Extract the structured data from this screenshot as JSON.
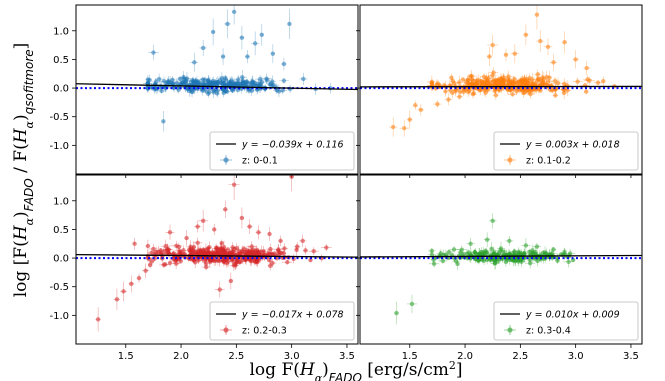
{
  "figure": {
    "ylabel": "log [F(Hα)FADO / F(Hα)qsofitmore]",
    "xlabel": "log F(Hα)FADO [erg/s/cm2]"
  },
  "chart_data": [
    {
      "type": "scatter",
      "panel": "top-left",
      "xlim": [
        1.05,
        3.6
      ],
      "ylim": [
        -1.5,
        1.45
      ],
      "xticks": [
        1.5,
        2.0,
        2.5,
        3.0,
        3.5
      ],
      "yticks": [
        -1.0,
        -0.5,
        0.0,
        0.5,
        1.0
      ],
      "legend_placement": "lower-right",
      "fit": {
        "slope": -0.039,
        "intercept": 0.116,
        "label": "y = −0.039x + 0.116"
      },
      "series": [
        {
          "name": "z: 0-0.1",
          "color": "#1f77b4"
        }
      ],
      "cloud": {
        "x_center": 2.3,
        "x_spread": 0.33,
        "y_center": 0.04,
        "y_spread": 0.06,
        "count": 260
      },
      "outliers": [
        [
          1.75,
          0.62
        ],
        [
          1.84,
          -0.58
        ],
        [
          2.2,
          0.7
        ],
        [
          2.29,
          0.98
        ],
        [
          2.42,
          1.12
        ],
        [
          2.48,
          1.33
        ],
        [
          2.55,
          0.88
        ],
        [
          2.6,
          0.55
        ],
        [
          2.67,
          0.78
        ],
        [
          2.73,
          0.93
        ],
        [
          2.83,
          0.6
        ],
        [
          2.98,
          1.12
        ],
        [
          2.38,
          0.55
        ],
        [
          2.12,
          0.45
        ],
        [
          2.93,
          0.42
        ]
      ]
    },
    {
      "type": "scatter",
      "panel": "top-right",
      "xlim": [
        1.05,
        3.6
      ],
      "ylim": [
        -1.5,
        1.45
      ],
      "xticks": [
        1.5,
        2.0,
        2.5,
        3.0,
        3.5
      ],
      "yticks": [
        -1.0,
        -0.5,
        0.0,
        0.5,
        1.0
      ],
      "legend_placement": "lower-right",
      "fit": {
        "slope": 0.003,
        "intercept": 0.018,
        "label": "y = 0.003x + 0.018"
      },
      "series": [
        {
          "name": "z: 0.1-0.2",
          "color": "#ff7f0e"
        }
      ],
      "cloud": {
        "x_center": 2.35,
        "x_spread": 0.3,
        "y_center": 0.05,
        "y_spread": 0.07,
        "count": 300
      },
      "outliers": [
        [
          1.35,
          -0.68
        ],
        [
          1.45,
          -0.7
        ],
        [
          1.5,
          -0.55
        ],
        [
          1.6,
          -0.38
        ],
        [
          1.75,
          -0.28
        ],
        [
          1.85,
          -0.2
        ],
        [
          1.95,
          -0.15
        ],
        [
          1.55,
          -0.3
        ],
        [
          2.25,
          0.75
        ],
        [
          2.37,
          0.58
        ],
        [
          2.55,
          0.93
        ],
        [
          2.65,
          1.28
        ],
        [
          2.68,
          0.82
        ],
        [
          2.75,
          0.72
        ],
        [
          2.8,
          0.45
        ],
        [
          2.9,
          0.8
        ],
        [
          3.0,
          0.5
        ],
        [
          3.1,
          0.35
        ],
        [
          3.25,
          0.12
        ],
        [
          3.35,
          0.03
        ],
        [
          2.45,
          0.6
        ],
        [
          2.22,
          0.55
        ]
      ]
    },
    {
      "type": "scatter",
      "panel": "bottom-left",
      "xlim": [
        1.05,
        3.6
      ],
      "ylim": [
        -1.5,
        1.45
      ],
      "xticks": [
        1.5,
        2.0,
        2.5,
        3.0,
        3.5
      ],
      "yticks": [
        -1.0,
        -0.5,
        0.0,
        0.5,
        1.0
      ],
      "legend_placement": "lower-right",
      "fit": {
        "slope": -0.017,
        "intercept": 0.078,
        "label": "y = −0.017x + 0.078"
      },
      "series": [
        {
          "name": "z: 0.2-0.3",
          "color": "#d62728"
        }
      ],
      "cloud": {
        "x_center": 2.35,
        "x_spread": 0.33,
        "y_center": 0.05,
        "y_spread": 0.07,
        "count": 340
      },
      "outliers": [
        [
          1.25,
          -1.07
        ],
        [
          1.42,
          -0.72
        ],
        [
          1.48,
          -0.58
        ],
        [
          1.55,
          -0.45
        ],
        [
          1.62,
          -0.35
        ],
        [
          1.68,
          -0.22
        ],
        [
          1.72,
          -0.12
        ],
        [
          1.58,
          0.25
        ],
        [
          1.9,
          0.45
        ],
        [
          2.05,
          0.35
        ],
        [
          2.15,
          0.55
        ],
        [
          2.2,
          0.65
        ],
        [
          2.3,
          0.5
        ],
        [
          2.4,
          0.85
        ],
        [
          2.48,
          1.28
        ],
        [
          2.55,
          0.7
        ],
        [
          2.62,
          0.55
        ],
        [
          2.7,
          0.45
        ],
        [
          2.8,
          0.42
        ],
        [
          3.0,
          1.42
        ],
        [
          3.1,
          0.3
        ],
        [
          3.2,
          0.12
        ],
        [
          2.9,
          0.3
        ],
        [
          2.35,
          -0.55
        ],
        [
          2.45,
          -0.4
        ]
      ]
    },
    {
      "type": "scatter",
      "panel": "bottom-right",
      "xlim": [
        1.05,
        3.6
      ],
      "ylim": [
        -1.5,
        1.45
      ],
      "xticks": [
        1.5,
        2.0,
        2.5,
        3.0,
        3.5
      ],
      "yticks": [
        -1.0,
        -0.5,
        0.0,
        0.5,
        1.0
      ],
      "legend_placement": "lower-right",
      "fit": {
        "slope": 0.01,
        "intercept": 0.009,
        "label": "y = 0.010x + 0.009"
      },
      "series": [
        {
          "name": "z: 0.3-0.4",
          "color": "#2ca02c"
        }
      ],
      "cloud": {
        "x_center": 2.35,
        "x_spread": 0.26,
        "y_center": 0.03,
        "y_spread": 0.05,
        "count": 220
      },
      "outliers": [
        [
          1.38,
          -0.96
        ],
        [
          1.52,
          -0.8
        ],
        [
          1.72,
          -0.1
        ],
        [
          1.8,
          -0.05
        ],
        [
          1.9,
          0.15
        ],
        [
          2.05,
          0.25
        ],
        [
          2.2,
          0.32
        ],
        [
          2.25,
          0.65
        ],
        [
          2.4,
          0.3
        ],
        [
          2.55,
          0.22
        ],
        [
          2.65,
          0.2
        ],
        [
          2.8,
          0.15
        ],
        [
          2.95,
          0.08
        ]
      ]
    }
  ]
}
